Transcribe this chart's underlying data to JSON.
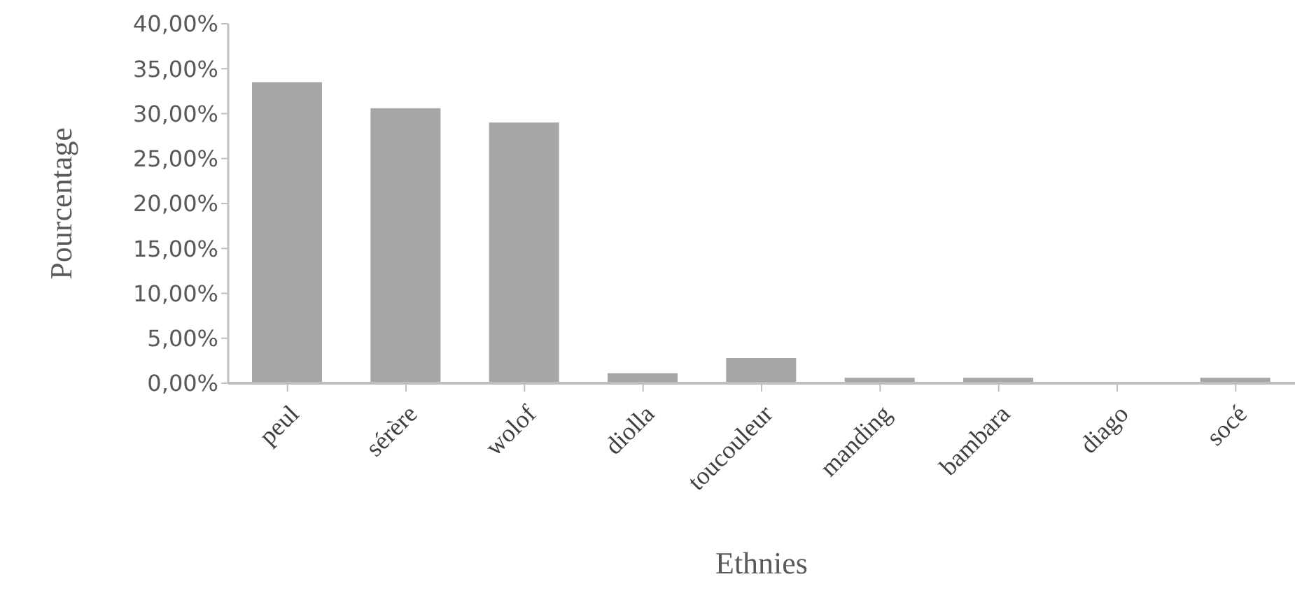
{
  "chart_data": {
    "type": "bar",
    "xlabel": "Ethnies",
    "ylabel": "Pourcentage",
    "categories": [
      "peul",
      "sérère",
      "wolof",
      "diolla",
      "toucouleur",
      "manding",
      "bambara",
      "diago",
      "socé"
    ],
    "values": [
      33.5,
      30.6,
      29.0,
      1.1,
      2.8,
      0.6,
      0.6,
      0,
      0.6
    ],
    "color": "#a6a6a6",
    "ylim": [
      0,
      40
    ],
    "yticks": [
      {
        "value": 0,
        "label": "0,00%"
      },
      {
        "value": 5,
        "label": "5,00%"
      },
      {
        "value": 10,
        "label": "10,00%"
      },
      {
        "value": 15,
        "label": "15,00%"
      },
      {
        "value": 20,
        "label": "20,00%"
      },
      {
        "value": 25,
        "label": "25,00%"
      },
      {
        "value": 30,
        "label": "30,00%"
      },
      {
        "value": 35,
        "label": "35,00%"
      },
      {
        "value": 40,
        "label": "40,00%"
      }
    ],
    "grid": false,
    "legend": false
  }
}
